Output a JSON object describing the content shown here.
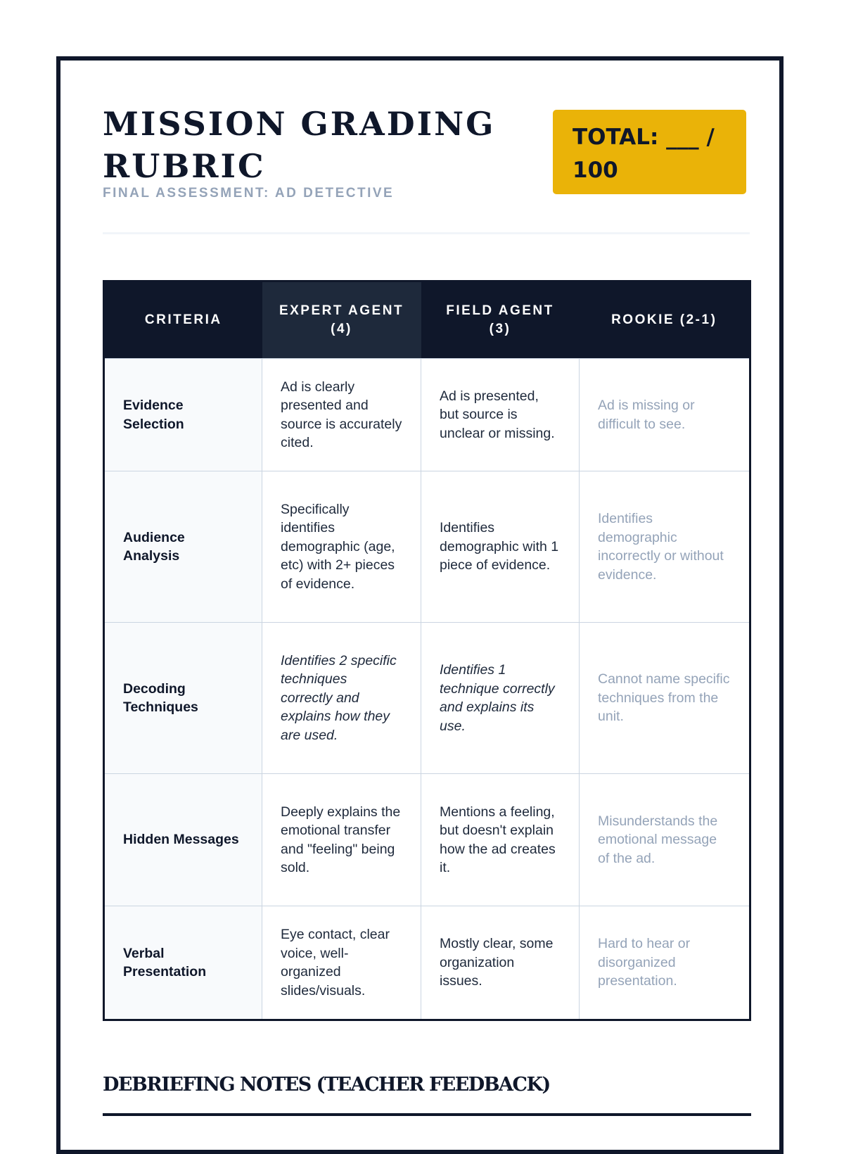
{
  "header": {
    "title": "MISSION GRADING RUBRIC",
    "subtitle": "FINAL ASSESSMENT: AD DETECTIVE",
    "total": "TOTAL: ___ / 100"
  },
  "table": {
    "columns": [
      "CRITERIA",
      "EXPERT AGENT (4)",
      "FIELD AGENT (3)",
      "ROOKIE (2-1)"
    ],
    "rows": [
      {
        "criteria": "Evidence Selection",
        "expert": "Ad is clearly presented and source is accurately cited.",
        "field": "Ad is presented, but source is unclear or missing.",
        "rookie": "Ad is missing or difficult to see."
      },
      {
        "criteria": "Audience Analysis",
        "expert": "Specifically identifies demographic (age, etc) with 2+ pieces of evidence.",
        "field": "Identifies demographic with 1 piece of evidence.",
        "rookie": "Identifies demographic incorrectly or without evidence."
      },
      {
        "criteria": "Decoding Techniques",
        "expert": "Identifies 2 specific techniques correctly and explains how they are used.",
        "field": "Identifies 1 technique correctly and explains its use.",
        "rookie": "Cannot name specific techniques from the unit."
      },
      {
        "criteria": "Hidden Messages",
        "expert": "Deeply explains the emotional transfer and \"feeling\" being sold.",
        "field": "Mentions a feeling, but doesn't explain how the ad creates it.",
        "rookie": "Misunderstands the emotional message of the ad."
      },
      {
        "criteria": "Verbal Presentation",
        "expert": "Eye contact, clear voice, well-organized slides/visuals.",
        "field": "Mostly clear, some organization issues.",
        "rookie": "Hard to hear or disorganized presentation."
      }
    ]
  },
  "debrief": {
    "title": "DEBRIEFING NOTES (TEACHER FEEDBACK)"
  },
  "colors": {
    "ink": "#0f172a",
    "accent": "#eab308",
    "muted": "#94a3b8"
  }
}
